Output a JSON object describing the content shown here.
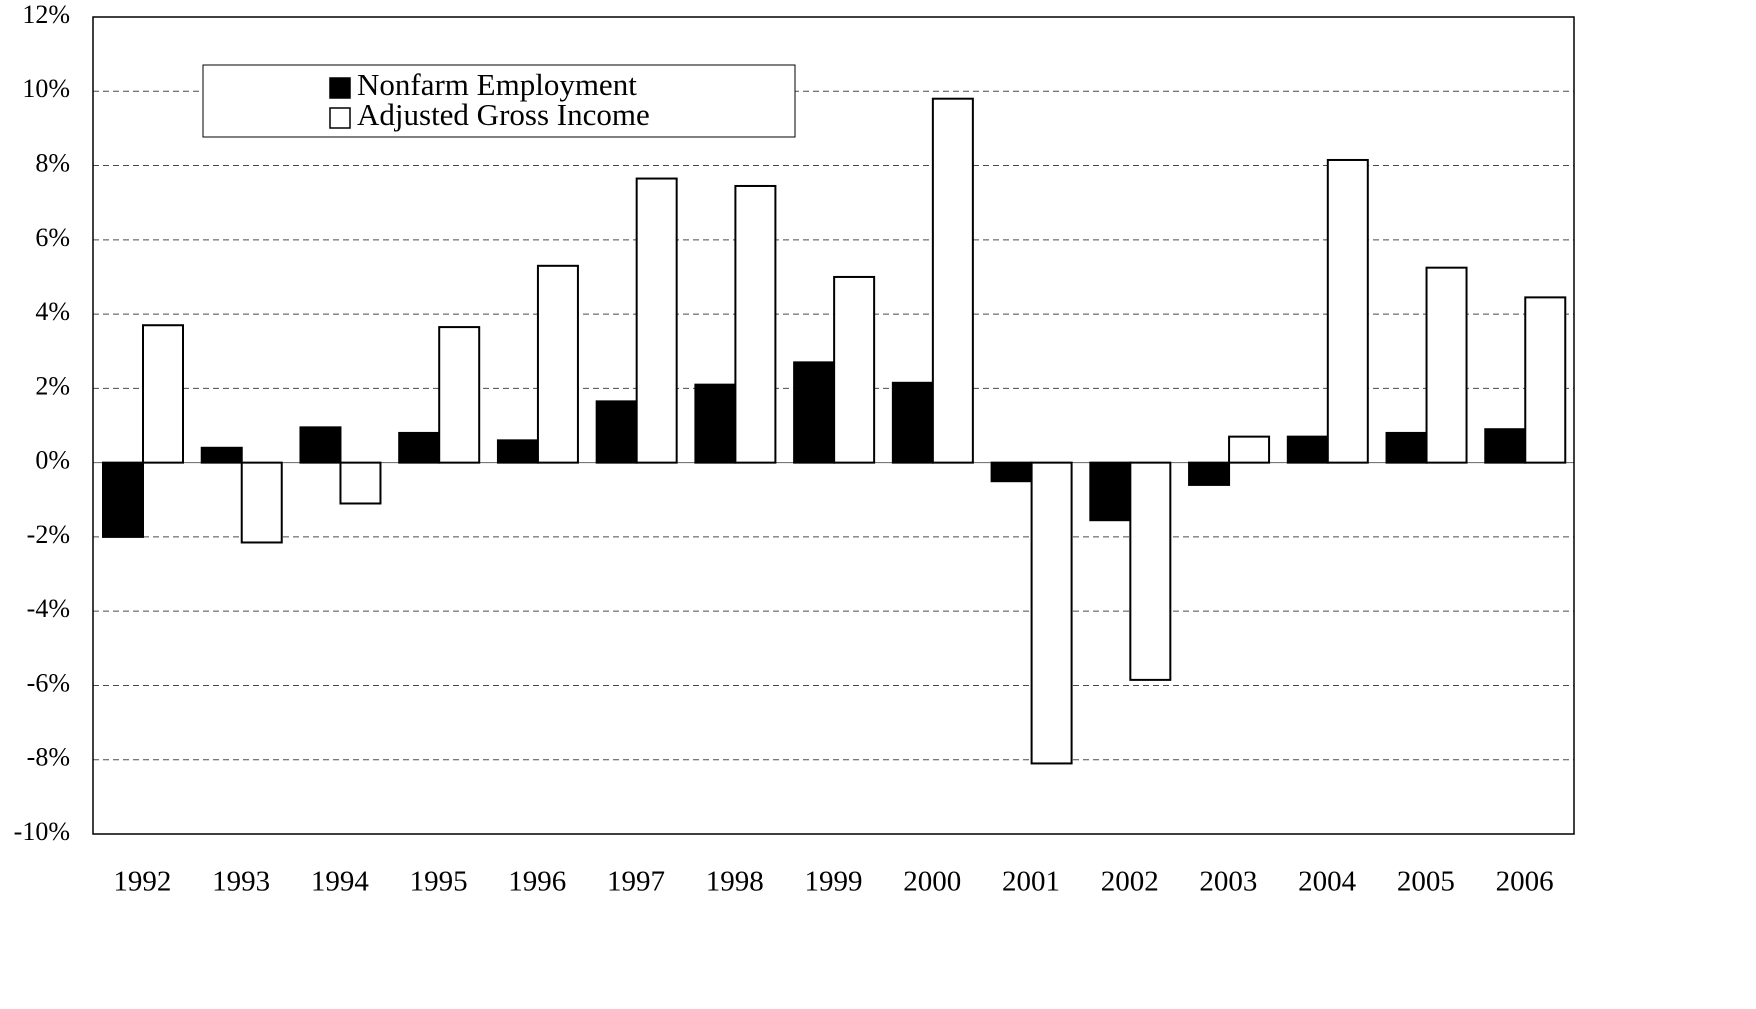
{
  "chart_data": {
    "type": "bar",
    "categories": [
      "1992",
      "1993",
      "1994",
      "1995",
      "1996",
      "1997",
      "1998",
      "1999",
      "2000",
      "2001",
      "2002",
      "2003",
      "2004",
      "2005",
      "2006"
    ],
    "series": [
      {
        "name": "Nonfarm Employment",
        "color": "#000000",
        "values": [
          -2.0,
          0.4,
          0.95,
          0.8,
          0.6,
          1.65,
          2.1,
          2.7,
          2.15,
          -0.5,
          -1.55,
          -0.6,
          0.7,
          0.8,
          0.9
        ]
      },
      {
        "name": "Adjusted Gross Income",
        "color": "#ffffff",
        "values": [
          3.7,
          -2.15,
          -1.1,
          3.65,
          5.3,
          7.65,
          7.45,
          5.0,
          9.8,
          -8.1,
          -5.85,
          0.7,
          8.15,
          5.25,
          4.45
        ]
      }
    ],
    "ylim": [
      -10,
      12
    ],
    "yticks": [
      {
        "value": -10,
        "label": "-10%"
      },
      {
        "value": -8,
        "label": "-8%"
      },
      {
        "value": -6,
        "label": "-6%"
      },
      {
        "value": -4,
        "label": "-4%"
      },
      {
        "value": -2,
        "label": "-2%"
      },
      {
        "value": 0,
        "label": "0%"
      },
      {
        "value": 2,
        "label": "2%"
      },
      {
        "value": 4,
        "label": "4%"
      },
      {
        "value": 6,
        "label": "6%"
      },
      {
        "value": 8,
        "label": "8%"
      },
      {
        "value": 10,
        "label": "10%"
      },
      {
        "value": 12,
        "label": "12%"
      }
    ],
    "grid": true,
    "legend": "top-left"
  }
}
